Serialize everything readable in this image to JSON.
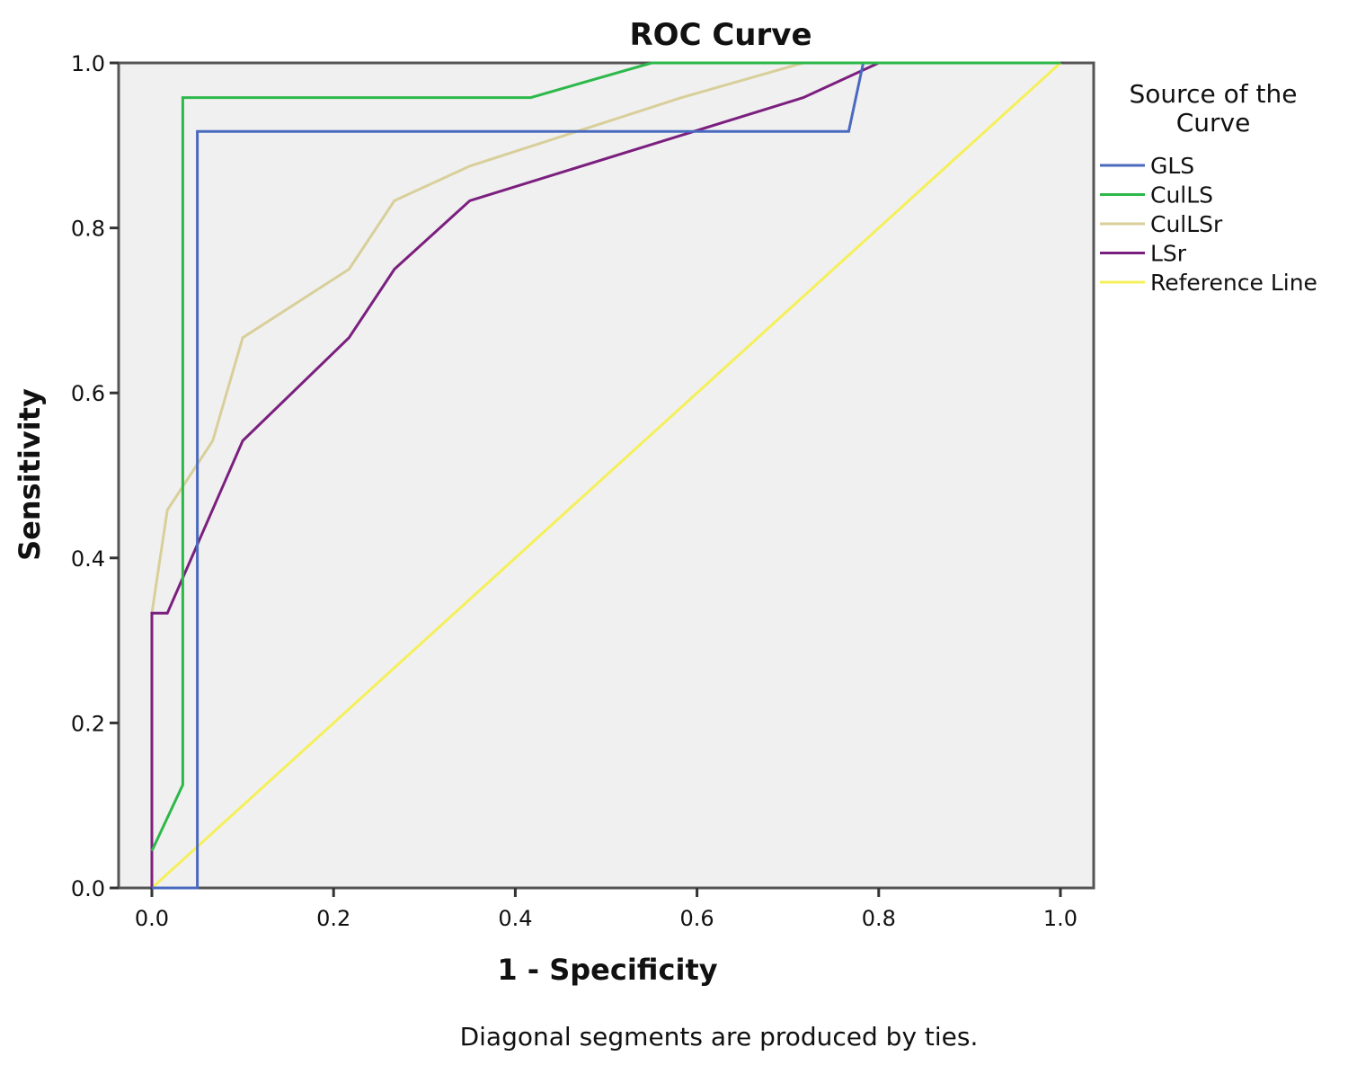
{
  "chart_data": {
    "type": "line",
    "title": "ROC Curve",
    "xlabel": "1 - Specificity",
    "ylabel": "Sensitivity",
    "xlim": [
      0,
      1
    ],
    "ylim": [
      0,
      1
    ],
    "xticks": [
      "0.0",
      "0.2",
      "0.4",
      "0.6",
      "0.8",
      "1.0"
    ],
    "yticks": [
      "0.0",
      "0.2",
      "0.4",
      "0.6",
      "0.8",
      "1.0"
    ],
    "footnote": "Diagonal segments are produced by ties.",
    "legend": {
      "title_line1": "Source of the",
      "title_line2": "Curve",
      "placement": "right"
    },
    "series": [
      {
        "name": "GLS",
        "color": "#4a6abf",
        "points": [
          [
            0,
            0
          ],
          [
            0.05,
            0
          ],
          [
            0.05,
            0.917
          ],
          [
            0.767,
            0.917
          ],
          [
            0.783,
            1.0
          ],
          [
            1,
            1
          ]
        ]
      },
      {
        "name": "CulLS",
        "color": "#2db84a",
        "points": [
          [
            0,
            0.045
          ],
          [
            0.034,
            0.125
          ],
          [
            0.034,
            0.958
          ],
          [
            0.417,
            0.958
          ],
          [
            0.55,
            1.0
          ],
          [
            1,
            1
          ]
        ]
      },
      {
        "name": "CulLSr",
        "color": "#d8cf9a",
        "points": [
          [
            0,
            0.333
          ],
          [
            0.017,
            0.458
          ],
          [
            0.067,
            0.542
          ],
          [
            0.1,
            0.667
          ],
          [
            0.217,
            0.75
          ],
          [
            0.267,
            0.833
          ],
          [
            0.35,
            0.875
          ],
          [
            0.583,
            0.958
          ],
          [
            0.717,
            1.0
          ],
          [
            1,
            1
          ]
        ]
      },
      {
        "name": "LSr",
        "color": "#7b1f7e",
        "points": [
          [
            0,
            0
          ],
          [
            0,
            0.333
          ],
          [
            0.017,
            0.333
          ],
          [
            0.1,
            0.542
          ],
          [
            0.217,
            0.667
          ],
          [
            0.267,
            0.75
          ],
          [
            0.35,
            0.833
          ],
          [
            0.717,
            0.958
          ],
          [
            0.8,
            1.0
          ],
          [
            1,
            1
          ]
        ]
      },
      {
        "name": "Reference Line",
        "color": "#f5f05a",
        "points": [
          [
            0,
            0
          ],
          [
            1,
            1
          ]
        ]
      }
    ]
  }
}
